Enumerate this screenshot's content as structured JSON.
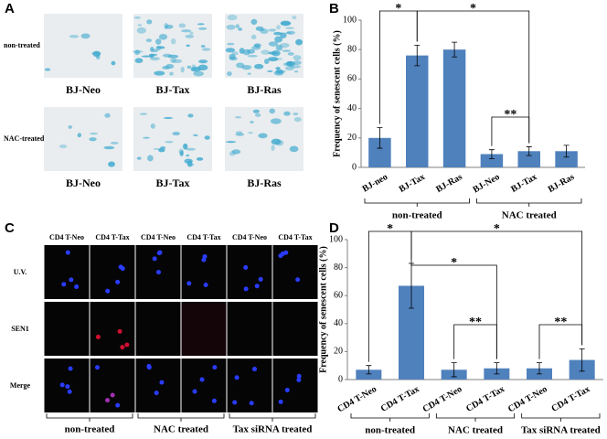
{
  "panel_labels": [
    "A",
    "B",
    "C",
    "D"
  ],
  "panel_a": {
    "row_labels": [
      "non-treated",
      "NAC-treated"
    ],
    "captions": [
      [
        "BJ-Neo",
        "BJ-Tax",
        "BJ-Ras"
      ],
      [
        "BJ-Neo",
        "BJ-Tax",
        "BJ-Ras"
      ]
    ]
  },
  "panel_c": {
    "columns": [
      "CD4 T-Neo",
      "CD4 T-Tax",
      "CD4 T-Neo",
      "CD4 T-Tax",
      "CD4 T-Neo",
      "CD4 T-Tax"
    ],
    "rows": [
      "U.V.",
      "SEN1",
      "Merge"
    ],
    "groups": [
      "non-treated",
      "NAC treated",
      "Tax siRNA treated"
    ]
  },
  "chart_data": [
    {
      "type": "bar",
      "y_label": "Frequency of senescent cells (%)",
      "categories": [
        "BJ-neo",
        "BJ-Tax",
        "BJ-Ras",
        "BJ-Neo",
        "BJ-Tax",
        "BJ-Ras"
      ],
      "values": [
        20,
        76,
        80,
        9,
        11,
        11
      ],
      "errors": [
        7,
        7,
        5,
        3,
        3,
        4
      ],
      "groups": [
        "non-treated",
        "NAC treated"
      ],
      "annotations": [
        "*",
        "*",
        "**"
      ],
      "color": "#4f81bd",
      "ylim": [
        0,
        100
      ],
      "yticks": [
        0,
        20,
        40,
        60,
        80,
        100
      ]
    },
    {
      "type": "bar",
      "y_label": "Frequency of senescent cells (%)",
      "categories": [
        "CD4 T-Neo",
        "CD4 T-Tax",
        "CD4 T-Neo",
        "CD4 T-Tax",
        "CD4 T-Neo",
        "CD4 T-Tax"
      ],
      "values": [
        7,
        67,
        7,
        8,
        8,
        14
      ],
      "errors": [
        3,
        16,
        5,
        4,
        4,
        8
      ],
      "groups": [
        "non-treated",
        "NAC treated",
        "Tax siRNA treated"
      ],
      "annotations": [
        "*",
        "*",
        "*",
        "**",
        "**"
      ],
      "color": "#4f81bd",
      "ylim": [
        0,
        100
      ],
      "yticks": [
        0,
        20,
        40,
        60,
        80,
        100
      ]
    }
  ]
}
